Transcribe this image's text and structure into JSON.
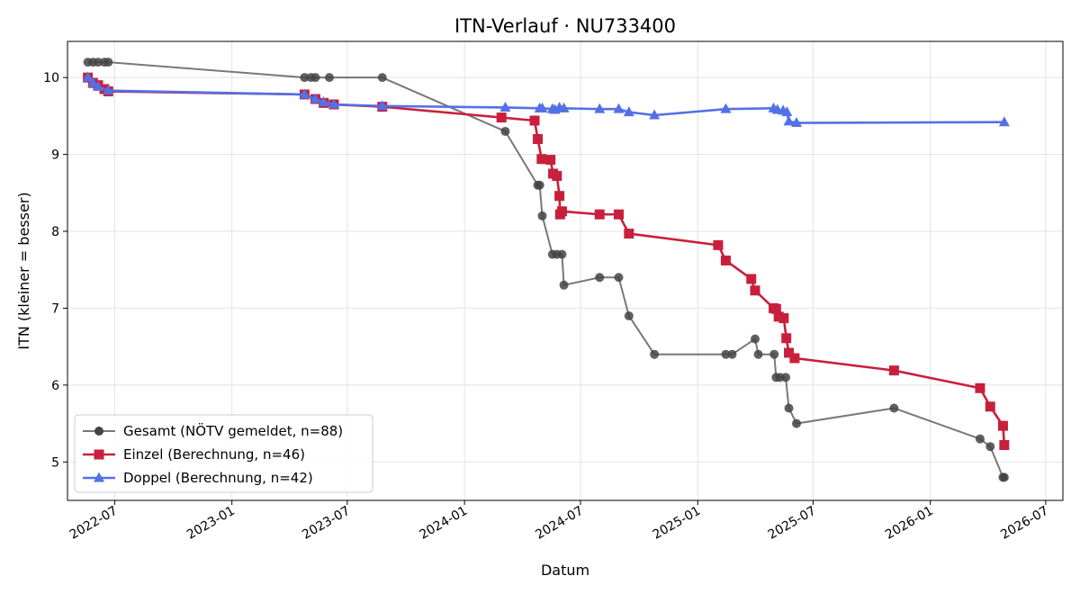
{
  "chart_data": {
    "type": "line",
    "title": "ITN-Verlauf · NU733400",
    "xlabel": "Datum",
    "ylabel": "ITN  (kleiner = besser)",
    "x_ticks": [
      "2022-07",
      "2023-01",
      "2023-07",
      "2024-01",
      "2024-07",
      "2025-01",
      "2025-07",
      "2026-01",
      "2026-07"
    ],
    "y_ticks": [
      5,
      6,
      7,
      8,
      9,
      10
    ],
    "xlim": [
      "2022-04-18",
      "2026-07-28"
    ],
    "ylim": [
      4.5,
      10.47
    ],
    "grid": true,
    "legend_position": "lower-left",
    "series": [
      {
        "name": "Gesamt (NÖTV gemeldet, n=88)",
        "color": "#444444",
        "marker": "circle",
        "points": [
          [
            "2022-05-20",
            10.2
          ],
          [
            "2022-05-28",
            10.2
          ],
          [
            "2022-06-05",
            10.2
          ],
          [
            "2022-06-15",
            10.2
          ],
          [
            "2022-06-21",
            10.2
          ],
          [
            "2023-04-25",
            10.0
          ],
          [
            "2023-05-05",
            10.0
          ],
          [
            "2023-05-12",
            10.0
          ],
          [
            "2023-06-03",
            10.0
          ],
          [
            "2023-08-25",
            10.0
          ],
          [
            "2024-03-05",
            9.3
          ],
          [
            "2024-04-25",
            8.6
          ],
          [
            "2024-04-28",
            8.6
          ],
          [
            "2024-05-02",
            8.2
          ],
          [
            "2024-05-18",
            7.7
          ],
          [
            "2024-05-25",
            7.7
          ],
          [
            "2024-06-02",
            7.7
          ],
          [
            "2024-06-05",
            7.3
          ],
          [
            "2024-07-31",
            7.4
          ],
          [
            "2024-08-30",
            7.4
          ],
          [
            "2024-09-15",
            6.9
          ],
          [
            "2024-10-25",
            6.4
          ],
          [
            "2025-02-14",
            6.4
          ],
          [
            "2025-02-24",
            6.4
          ],
          [
            "2025-04-01",
            6.6
          ],
          [
            "2025-04-06",
            6.4
          ],
          [
            "2025-05-01",
            6.4
          ],
          [
            "2025-05-04",
            6.1
          ],
          [
            "2025-05-10",
            6.1
          ],
          [
            "2025-05-19",
            6.1
          ],
          [
            "2025-05-24",
            5.7
          ],
          [
            "2025-06-05",
            5.5
          ],
          [
            "2025-11-05",
            5.7
          ],
          [
            "2026-03-20",
            5.3
          ],
          [
            "2026-04-05",
            5.2
          ],
          [
            "2026-04-25",
            4.8
          ],
          [
            "2026-04-27",
            4.8
          ]
        ]
      },
      {
        "name": "Einzel (Berechnung, n=46)",
        "color": "#c8203c",
        "marker": "square",
        "points": [
          [
            "2022-05-20",
            10.0
          ],
          [
            "2022-05-28",
            9.93
          ],
          [
            "2022-06-05",
            9.9
          ],
          [
            "2022-06-15",
            9.85
          ],
          [
            "2022-06-21",
            9.82
          ],
          [
            "2023-04-25",
            9.78
          ],
          [
            "2023-05-12",
            9.72
          ],
          [
            "2023-05-25",
            9.67
          ],
          [
            "2023-06-10",
            9.65
          ],
          [
            "2023-08-25",
            9.62
          ],
          [
            "2024-02-28",
            9.48
          ],
          [
            "2024-04-20",
            9.44
          ],
          [
            "2024-04-25",
            9.2
          ],
          [
            "2024-05-01",
            8.94
          ],
          [
            "2024-05-15",
            8.93
          ],
          [
            "2024-05-19",
            8.75
          ],
          [
            "2024-05-25",
            8.72
          ],
          [
            "2024-05-29",
            8.46
          ],
          [
            "2024-05-30",
            8.22
          ],
          [
            "2024-06-02",
            8.26
          ],
          [
            "2024-07-31",
            8.22
          ],
          [
            "2024-08-30",
            8.22
          ],
          [
            "2024-09-15",
            7.97
          ],
          [
            "2025-02-02",
            7.82
          ],
          [
            "2025-02-14",
            7.62
          ],
          [
            "2025-03-26",
            7.38
          ],
          [
            "2025-04-01",
            7.23
          ],
          [
            "2025-04-30",
            7.0
          ],
          [
            "2025-05-04",
            6.99
          ],
          [
            "2025-05-08",
            6.89
          ],
          [
            "2025-05-16",
            6.87
          ],
          [
            "2025-05-20",
            6.61
          ],
          [
            "2025-05-24",
            6.42
          ],
          [
            "2025-06-02",
            6.35
          ],
          [
            "2025-11-05",
            6.19
          ],
          [
            "2026-03-20",
            5.96
          ],
          [
            "2026-04-05",
            5.72
          ],
          [
            "2026-04-25",
            5.47
          ],
          [
            "2026-04-27",
            5.22
          ]
        ]
      },
      {
        "name": "Doppel (Berechnung, n=42)",
        "color": "#5470e6",
        "marker": "triangle",
        "points": [
          [
            "2022-05-20",
            10.0
          ],
          [
            "2022-05-28",
            9.93
          ],
          [
            "2022-06-05",
            9.88
          ],
          [
            "2022-06-21",
            9.83
          ],
          [
            "2023-04-25",
            9.78
          ],
          [
            "2023-05-12",
            9.72
          ],
          [
            "2023-05-25",
            9.68
          ],
          [
            "2023-06-10",
            9.65
          ],
          [
            "2023-08-25",
            9.63
          ],
          [
            "2024-03-05",
            9.61
          ],
          [
            "2024-04-28",
            9.6
          ],
          [
            "2024-05-02",
            9.6
          ],
          [
            "2024-05-18",
            9.59
          ],
          [
            "2024-05-22",
            9.58
          ],
          [
            "2024-05-29",
            9.61
          ],
          [
            "2024-06-05",
            9.6
          ],
          [
            "2024-07-31",
            9.59
          ],
          [
            "2024-08-30",
            9.59
          ],
          [
            "2024-09-15",
            9.55
          ],
          [
            "2024-10-25",
            9.51
          ],
          [
            "2025-02-14",
            9.59
          ],
          [
            "2025-04-30",
            9.6
          ],
          [
            "2025-05-06",
            9.58
          ],
          [
            "2025-05-15",
            9.57
          ],
          [
            "2025-05-21",
            9.55
          ],
          [
            "2025-05-24",
            9.43
          ],
          [
            "2025-06-05",
            9.41
          ],
          [
            "2026-04-27",
            9.42
          ]
        ]
      }
    ]
  }
}
